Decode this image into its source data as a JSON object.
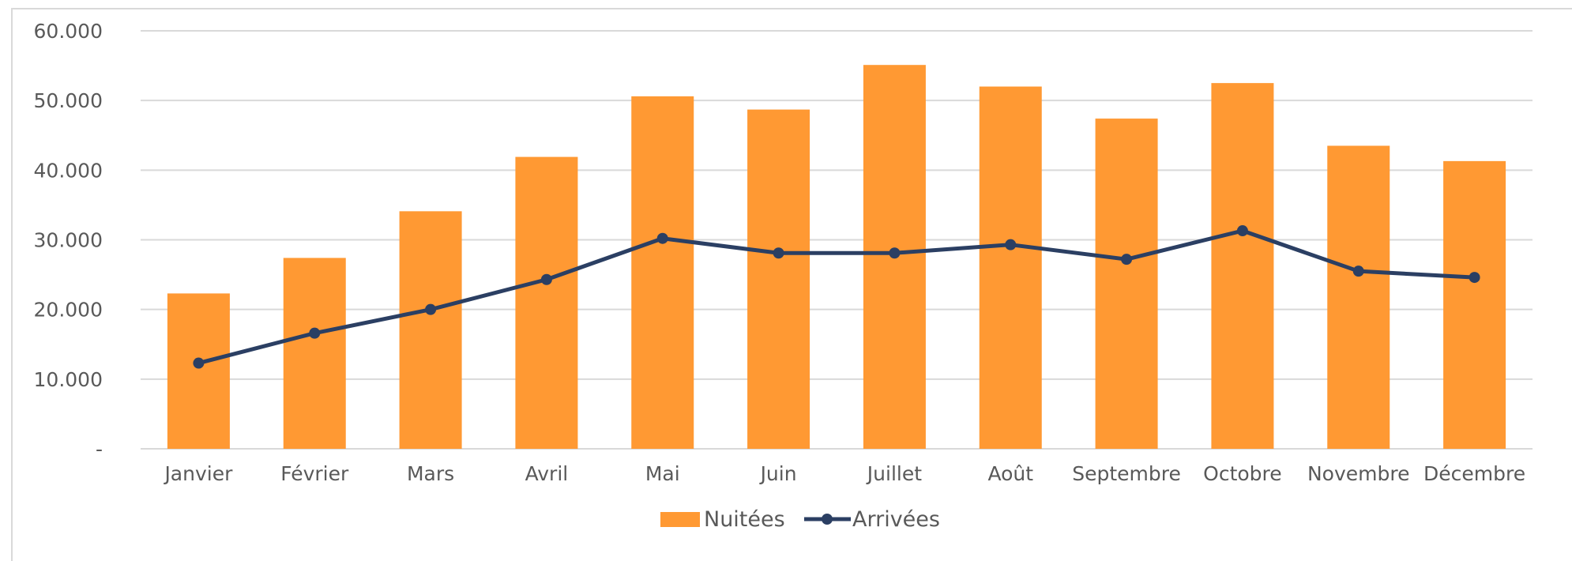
{
  "chart_data": {
    "type": "bar",
    "categories": [
      "Janvier",
      "Février",
      "Mars",
      "Avril",
      "Mai",
      "Juin",
      "Juillet",
      "Août",
      "Septembre",
      "Octobre",
      "Novembre",
      "Décembre"
    ],
    "series": [
      {
        "name": "Nuitées",
        "type": "bar",
        "color": "#ff9933",
        "values": [
          22300,
          27400,
          34100,
          41900,
          50600,
          48700,
          55100,
          52000,
          47400,
          52500,
          43500,
          41300
        ]
      },
      {
        "name": "Arrivées",
        "type": "line",
        "color": "#2b3f63",
        "values": [
          12300,
          16600,
          20000,
          24300,
          30200,
          28100,
          28100,
          29300,
          27200,
          31300,
          25500,
          24600
        ]
      }
    ],
    "ylim": [
      0,
      60000
    ],
    "y_ticks": [
      {
        "value": 0,
        "label": "-"
      },
      {
        "value": 10000,
        "label": "10.000"
      },
      {
        "value": 20000,
        "label": "20.000"
      },
      {
        "value": 30000,
        "label": "30.000"
      },
      {
        "value": 40000,
        "label": "40.000"
      },
      {
        "value": 50000,
        "label": "50.000"
      },
      {
        "value": 60000,
        "label": "60.000"
      }
    ],
    "grid": true,
    "legend_position": "bottom-center",
    "gridline_color": "#d9d9d9",
    "text_color": "#595959"
  }
}
